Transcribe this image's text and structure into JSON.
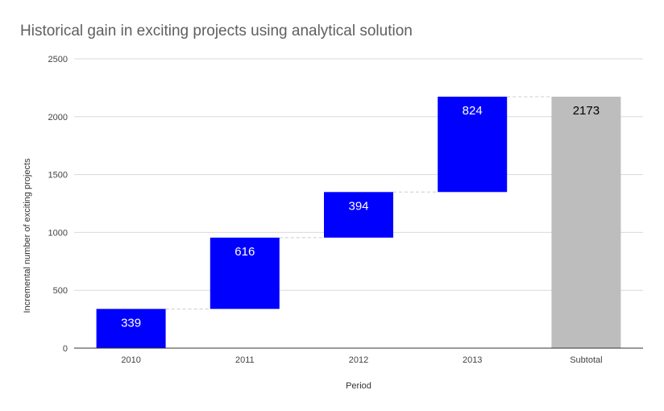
{
  "chart_data": {
    "type": "waterfall",
    "title": "Historical gain in exciting projects using analytical solution",
    "xlabel": "Period",
    "ylabel": "Incremental number of exciting projects",
    "ylim": [
      0,
      2500
    ],
    "yticks": [
      0,
      500,
      1000,
      1500,
      2000,
      2500
    ],
    "grid": true,
    "categories": [
      "2010",
      "2011",
      "2012",
      "2013",
      "Subtotal"
    ],
    "values": [
      339,
      616,
      394,
      824,
      2173
    ],
    "bar_types": [
      "increase",
      "increase",
      "increase",
      "increase",
      "total"
    ],
    "data_labels": [
      "339",
      "616",
      "394",
      "824",
      "2173"
    ],
    "colors": {
      "increase": "#0000ff",
      "total": "#bdbdbd",
      "increase_label": "#ffffff",
      "total_label": "#000000",
      "grid": "#d9d9d9",
      "connector": "#cccccc"
    }
  }
}
